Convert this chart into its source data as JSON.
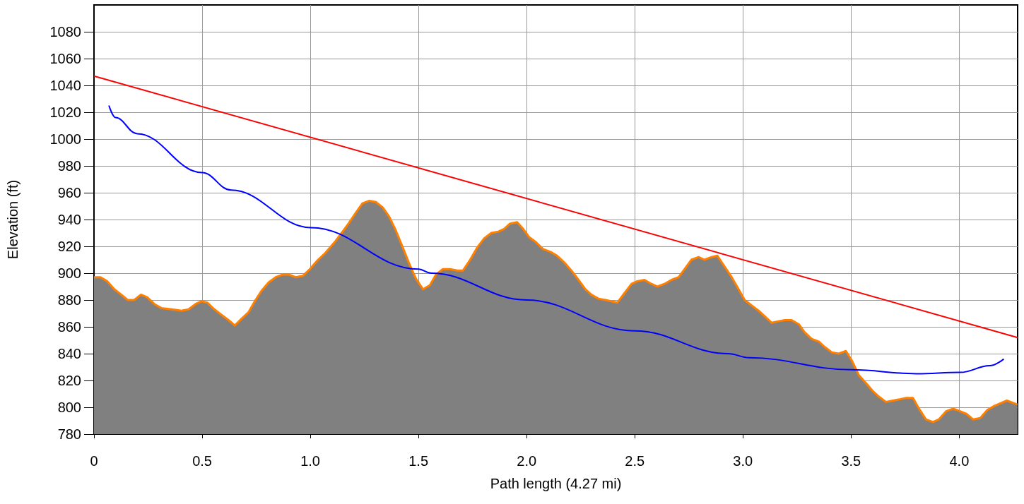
{
  "chart_data": {
    "type": "line",
    "xlabel": "Path length (4.27 mi)",
    "ylabel": "Elevation (ft)",
    "xlim": [
      0,
      4.27
    ],
    "ylim": [
      780,
      1100
    ],
    "xticks": [
      0,
      0.5,
      {
        "value": 1,
        "label": "1.0"
      },
      1.5,
      {
        "value": 2,
        "label": "2.0"
      },
      2.5,
      {
        "value": 3,
        "label": "3.0"
      },
      3.5,
      {
        "value": 4,
        "label": "4.0"
      }
    ],
    "yticks": [
      780,
      800,
      820,
      840,
      860,
      880,
      900,
      920,
      940,
      960,
      980,
      1000,
      1020,
      1040,
      1060,
      1080
    ],
    "grid": true,
    "marker": "none",
    "line_style": "solid",
    "series": [
      {
        "type": "area",
        "color": "#808080",
        "x": [
          0,
          0.03,
          0.061,
          0.094,
          0.126,
          0.156,
          0.186,
          0.217,
          0.246,
          0.279,
          0.311,
          0.36,
          0.404,
          0.437,
          0.47,
          0.497,
          0.524,
          0.557,
          0.589,
          0.622,
          0.651,
          0.682,
          0.715,
          0.747,
          0.775,
          0.807,
          0.84,
          0.873,
          0.9,
          0.932,
          0.965,
          0.998,
          1.03,
          1.069,
          1.112,
          1.145,
          1.177,
          1.21,
          1.241,
          1.273,
          1.303,
          1.335,
          1.365,
          1.395,
          1.428,
          1.455,
          1.488,
          1.521,
          1.553,
          1.581,
          1.613,
          1.646,
          1.679,
          1.706,
          1.739,
          1.771,
          1.804,
          1.837,
          1.869,
          1.896,
          1.924,
          1.956,
          1.984,
          2.011,
          2.044,
          2.076,
          2.109,
          2.141,
          2.174,
          2.207,
          2.24,
          2.272,
          2.299,
          2.332,
          2.365,
          2.419,
          2.452,
          2.485,
          2.512,
          2.545,
          2.577,
          2.605,
          2.637,
          2.67,
          2.703,
          2.73,
          2.762,
          2.795,
          2.822,
          2.855,
          2.882,
          2.915,
          2.948,
          2.98,
          3.008,
          3.04,
          3.073,
          3.1,
          3.133,
          3.16,
          3.193,
          3.225,
          3.258,
          3.285,
          3.318,
          3.351,
          3.378,
          3.411,
          3.443,
          3.476,
          3.503,
          3.536,
          3.569,
          3.601,
          3.628,
          3.661,
          3.694,
          3.726,
          3.754,
          3.786,
          3.814,
          3.846,
          3.879,
          3.906,
          3.939,
          3.972,
          4.004,
          4.034,
          4.064,
          4.097,
          4.13,
          4.162,
          4.19,
          4.22,
          4.269
        ],
        "values": [
          897,
          897,
          894,
          888,
          884,
          880,
          880,
          884,
          882,
          877,
          874,
          873,
          872,
          873,
          877,
          879,
          878,
          873,
          869,
          865,
          861,
          866,
          871,
          880,
          887,
          893,
          897,
          899,
          899,
          897,
          898,
          903,
          909,
          915,
          923,
          930,
          937,
          945,
          952,
          954,
          953,
          949,
          942,
          932,
          919,
          908,
          896,
          888,
          891,
          899,
          903,
          903,
          902,
          902,
          910,
          919,
          926,
          930,
          931,
          933,
          937,
          938,
          933,
          927,
          923,
          918,
          916,
          913,
          908,
          902,
          895,
          888,
          884,
          881,
          880,
          878,
          885,
          892,
          894,
          895,
          892,
          890,
          892,
          895,
          897,
          903,
          910,
          912,
          910,
          912,
          913,
          905,
          897,
          888,
          880,
          876,
          872,
          868,
          863,
          864,
          865,
          865,
          862,
          856,
          851,
          849,
          845,
          841,
          840,
          842,
          835,
          824,
          818,
          812,
          808,
          804,
          805,
          806,
          807,
          807,
          799,
          791,
          789,
          791,
          797,
          799,
          797,
          795,
          791,
          792,
          798,
          801,
          803,
          805,
          802
        ]
      },
      {
        "color": "#ff0000",
        "x": [
          0,
          4.27
        ],
        "values": [
          1047,
          852
        ]
      },
      {
        "color": "#0000ff",
        "x": [
          0.069,
          0.1,
          0.2,
          0.5,
          0.633,
          1.003,
          1.5,
          1.559,
          2.0,
          2.5,
          2.931,
          3.029,
          3.5,
          3.803,
          4.004,
          4.141,
          4.206
        ],
        "values": [
          1025,
          1016,
          1004,
          975,
          962,
          934,
          903,
          900,
          880,
          857,
          840,
          837,
          828,
          825,
          826,
          831,
          836
        ]
      }
    ]
  }
}
